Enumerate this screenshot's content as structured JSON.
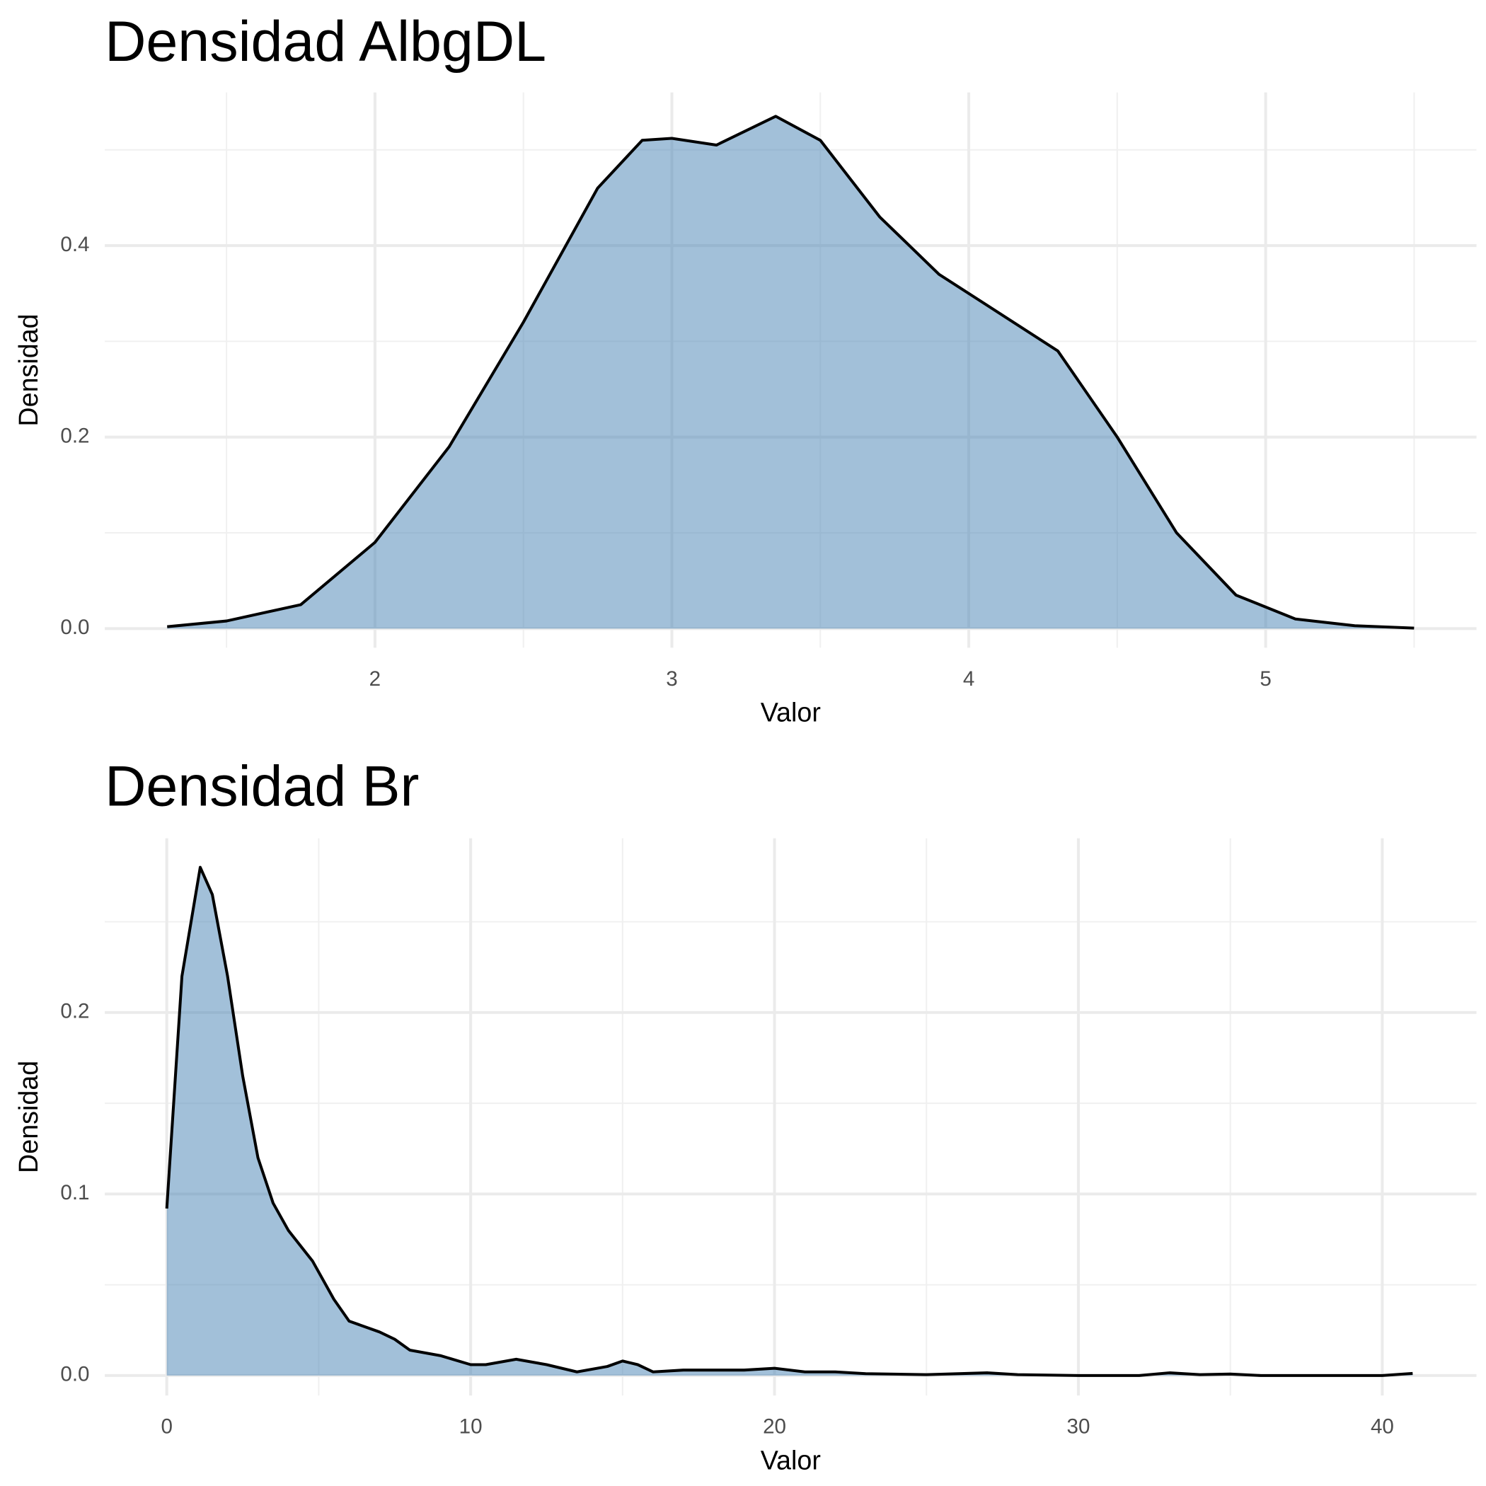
{
  "chart_data": [
    {
      "type": "density",
      "title": "Densidad AlbgDL",
      "x_label": "Valor",
      "y_label": "Densidad",
      "x": [
        1.3,
        1.5,
        1.75,
        2.0,
        2.25,
        2.5,
        2.75,
        2.9,
        3.0,
        3.15,
        3.35,
        3.5,
        3.7,
        3.9,
        4.1,
        4.3,
        4.5,
        4.7,
        4.9,
        5.1,
        5.3,
        5.5
      ],
      "values": [
        0.002,
        0.008,
        0.025,
        0.09,
        0.19,
        0.32,
        0.46,
        0.51,
        0.512,
        0.505,
        0.535,
        0.51,
        0.43,
        0.37,
        0.33,
        0.29,
        0.2,
        0.1,
        0.035,
        0.01,
        0.003,
        0.0005
      ],
      "color": "#4682b4",
      "fill_alpha": 0.5,
      "xlim": [
        1.09,
        5.71
      ],
      "xticks": [
        2,
        3,
        4,
        5
      ],
      "ylim": [
        -0.02,
        0.56
      ],
      "yticks": [
        {
          "value": 0,
          "label": "0.0"
        },
        0.2,
        0.4
      ],
      "grid": true,
      "minor_grid": true
    },
    {
      "type": "density",
      "title": "Densidad Br",
      "x_label": "Valor",
      "y_label": "Densidad",
      "x": [
        0,
        0.5,
        1.1,
        1.5,
        2,
        2.5,
        3,
        3.5,
        4,
        4.8,
        5.5,
        6,
        7,
        7.5,
        8,
        9,
        10,
        10.5,
        11.5,
        12.5,
        13.5,
        14.5,
        15,
        15.5,
        16,
        17,
        18,
        19,
        20,
        21,
        22,
        23,
        25,
        27,
        28,
        30,
        32,
        33,
        34,
        35,
        36,
        40,
        41
      ],
      "values": [
        0.092,
        0.22,
        0.28,
        0.265,
        0.22,
        0.165,
        0.12,
        0.095,
        0.08,
        0.063,
        0.042,
        0.03,
        0.024,
        0.02,
        0.014,
        0.011,
        0.006,
        0.006,
        0.009,
        0.006,
        0.002,
        0.005,
        0.008,
        0.006,
        0.002,
        0.003,
        0.003,
        0.003,
        0.004,
        0.002,
        0.002,
        0.001,
        0.0005,
        0.0015,
        0.0005,
        0,
        0,
        0.0015,
        0.0005,
        0.0008,
        0,
        0,
        0.0012
      ],
      "color": "#4682b4",
      "fill_alpha": 0.5,
      "xlim": [
        -2.04,
        43.1
      ],
      "xticks": [
        0,
        10,
        20,
        30,
        40
      ],
      "ylim": [
        -0.011,
        0.296
      ],
      "yticks": [
        {
          "value": 0,
          "label": "0.0"
        },
        0.1,
        0.2
      ],
      "grid": true,
      "minor_grid": true
    }
  ]
}
